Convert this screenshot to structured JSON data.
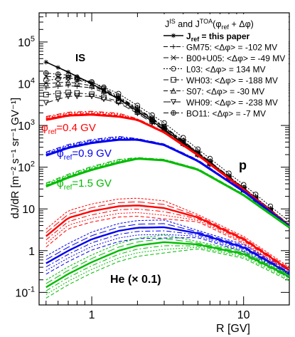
{
  "chart_data": {
    "type": "line",
    "title": "",
    "xlabel": "R [GV]",
    "ylabel": "dJ/dR  [m⁻² s⁻¹ sr⁻¹ GV⁻¹]",
    "xscale": "log",
    "yscale": "log",
    "xlim": [
      0.45,
      20
    ],
    "ylim": [
      0.05,
      500000
    ],
    "grid": false,
    "x_ticks": [
      {
        "value": 1,
        "label": "1"
      },
      {
        "value": 10,
        "label": "10"
      }
    ],
    "y_ticks": [
      {
        "value": 0.1,
        "label": "10",
        "exp": "-1"
      },
      {
        "value": 1,
        "label": "1",
        "exp": ""
      },
      {
        "value": 10,
        "label": "10",
        "exp": ""
      },
      {
        "value": 100,
        "label": "10",
        "exp": "2"
      },
      {
        "value": 1000,
        "label": "10",
        "exp": "3"
      },
      {
        "value": 10000,
        "label": "10",
        "exp": "4"
      },
      {
        "value": 100000,
        "label": "10",
        "exp": "5"
      }
    ],
    "legend": {
      "placement": "top-right",
      "header": {
        "base1": "J",
        "sup1": "IS",
        "mid": " and J",
        "sup2": "TOA",
        "open": "(φ",
        "sub": "ref",
        "close": " + Δφ)"
      },
      "entries": [
        {
          "label": "J",
          "sub": "ref",
          "rest": " = this paper",
          "bold": true,
          "marker": "star",
          "dash": "solid"
        },
        {
          "label": "GM75: <Δφ> = -102 MV",
          "marker": "plus",
          "dash": "dash"
        },
        {
          "label": "B00+U05: <Δφ> = -49 MV",
          "marker": "cross",
          "dash": "dashdot"
        },
        {
          "label": "L03: <Δφ> = 134 MV",
          "marker": "circle",
          "dash": "dot"
        },
        {
          "label": "WH03: <Δφ> = -188 MV",
          "marker": "square",
          "dash": "dashdot"
        },
        {
          "label": "S07: <Δφ> = -30 MV",
          "marker": "triangle-up",
          "dash": "dash"
        },
        {
          "label": "WH09: <Δφ> = -238 MV",
          "marker": "triangle-down",
          "dash": "longdash"
        },
        {
          "label": "BO11: <Δφ> = -7 MV",
          "marker": "crossed-circle",
          "dash": "dashdot"
        }
      ]
    },
    "annotations": {
      "is": "IS",
      "phi_labels": [
        {
          "symbol": "φ",
          "sub": "ref",
          "text": "=0.4 GV",
          "color": "#ff0000"
        },
        {
          "symbol": "φ",
          "sub": "ref",
          "text": "=0.9 GV",
          "color": "#0000ee"
        },
        {
          "symbol": "φ",
          "sub": "ref",
          "text": "=1.5 GV",
          "color": "#00bb00"
        }
      ],
      "species": [
        {
          "text": "p"
        },
        {
          "text": "He (× 0.1)"
        }
      ]
    },
    "proton_models": {
      "x": [
        0.5,
        0.7,
        1,
        1.5,
        2,
        3,
        5,
        10,
        20
      ],
      "series": [
        {
          "name": "J ref = this paper",
          "values": [
            33000,
            19000,
            10000,
            4300,
            2200,
            800,
            210,
            30,
            4
          ]
        },
        {
          "name": "GM75: <Δφ> = -102 MV",
          "values": [
            8000,
            9000,
            8000,
            4500,
            2400,
            900,
            220,
            31,
            4.1
          ]
        },
        {
          "name": "B00+U05: <Δφ> = -49 MV",
          "values": [
            15000,
            14000,
            10000,
            4800,
            2500,
            920,
            225,
            32,
            4.2
          ]
        },
        {
          "name": "L03: <Δφ> = 134 MV",
          "values": [
            12000,
            14000,
            11000,
            5800,
            3000,
            1150,
            270,
            38,
            5
          ]
        },
        {
          "name": "WH03: <Δφ> = -188 MV",
          "values": [
            5500,
            6200,
            5600,
            3800,
            2100,
            820,
            205,
            29,
            3.9
          ]
        },
        {
          "name": "S07: <Δφ> = -30 MV",
          "values": [
            10000,
            11000,
            9000,
            4600,
            2400,
            880,
            215,
            30,
            4
          ]
        },
        {
          "name": "WH09: <Δφ> = -238 MV",
          "values": [
            3500,
            5000,
            5000,
            3500,
            1950,
            760,
            195,
            28,
            3.8
          ]
        },
        {
          "name": "BO11: <Δφ> = -7 MV",
          "values": [
            18000,
            16000,
            11000,
            5000,
            2600,
            950,
            230,
            32,
            4.2
          ]
        }
      ]
    },
    "proton_modulated": {
      "x": [
        0.5,
        0.7,
        1,
        1.5,
        2,
        3,
        5,
        10,
        20
      ],
      "series": [
        {
          "name": "φref = 0.4 GV",
          "color": "#ff0000",
          "values": [
            1500,
            1900,
            2000,
            1800,
            1400,
            700,
            200,
            30,
            4
          ]
        },
        {
          "name": "φref = 0.9 GV",
          "color": "#0000ee",
          "values": [
            210,
            320,
            420,
            500,
            470,
            350,
            145,
            27,
            3.9
          ]
        },
        {
          "name": "φref = 1.5 GV",
          "color": "#00bb00",
          "values": [
            38,
            62,
            95,
            140,
            165,
            150,
            90,
            22,
            3.7
          ]
        }
      ]
    },
    "helium_scaled": {
      "x": [
        0.5,
        0.7,
        1,
        1.5,
        2,
        3,
        5,
        10,
        20
      ],
      "groups": [
        {
          "name": "φref = 0.4 GV",
          "color": "#ff0000",
          "values": [
            2.0,
            5.5,
            8.0,
            10.5,
            11.0,
            9.5,
            6.0,
            1.8,
            0.33
          ]
        },
        {
          "name": "φref = 0.9 GV",
          "color": "#0000ee",
          "values": [
            0.45,
            0.9,
            1.7,
            2.7,
            3.2,
            3.3,
            2.5,
            1.15,
            0.27
          ]
        },
        {
          "name": "φref = 1.5 GV",
          "color": "#00bb00",
          "values": [
            0.12,
            0.25,
            0.48,
            0.9,
            1.2,
            1.45,
            1.35,
            0.8,
            0.23
          ]
        }
      ]
    }
  }
}
